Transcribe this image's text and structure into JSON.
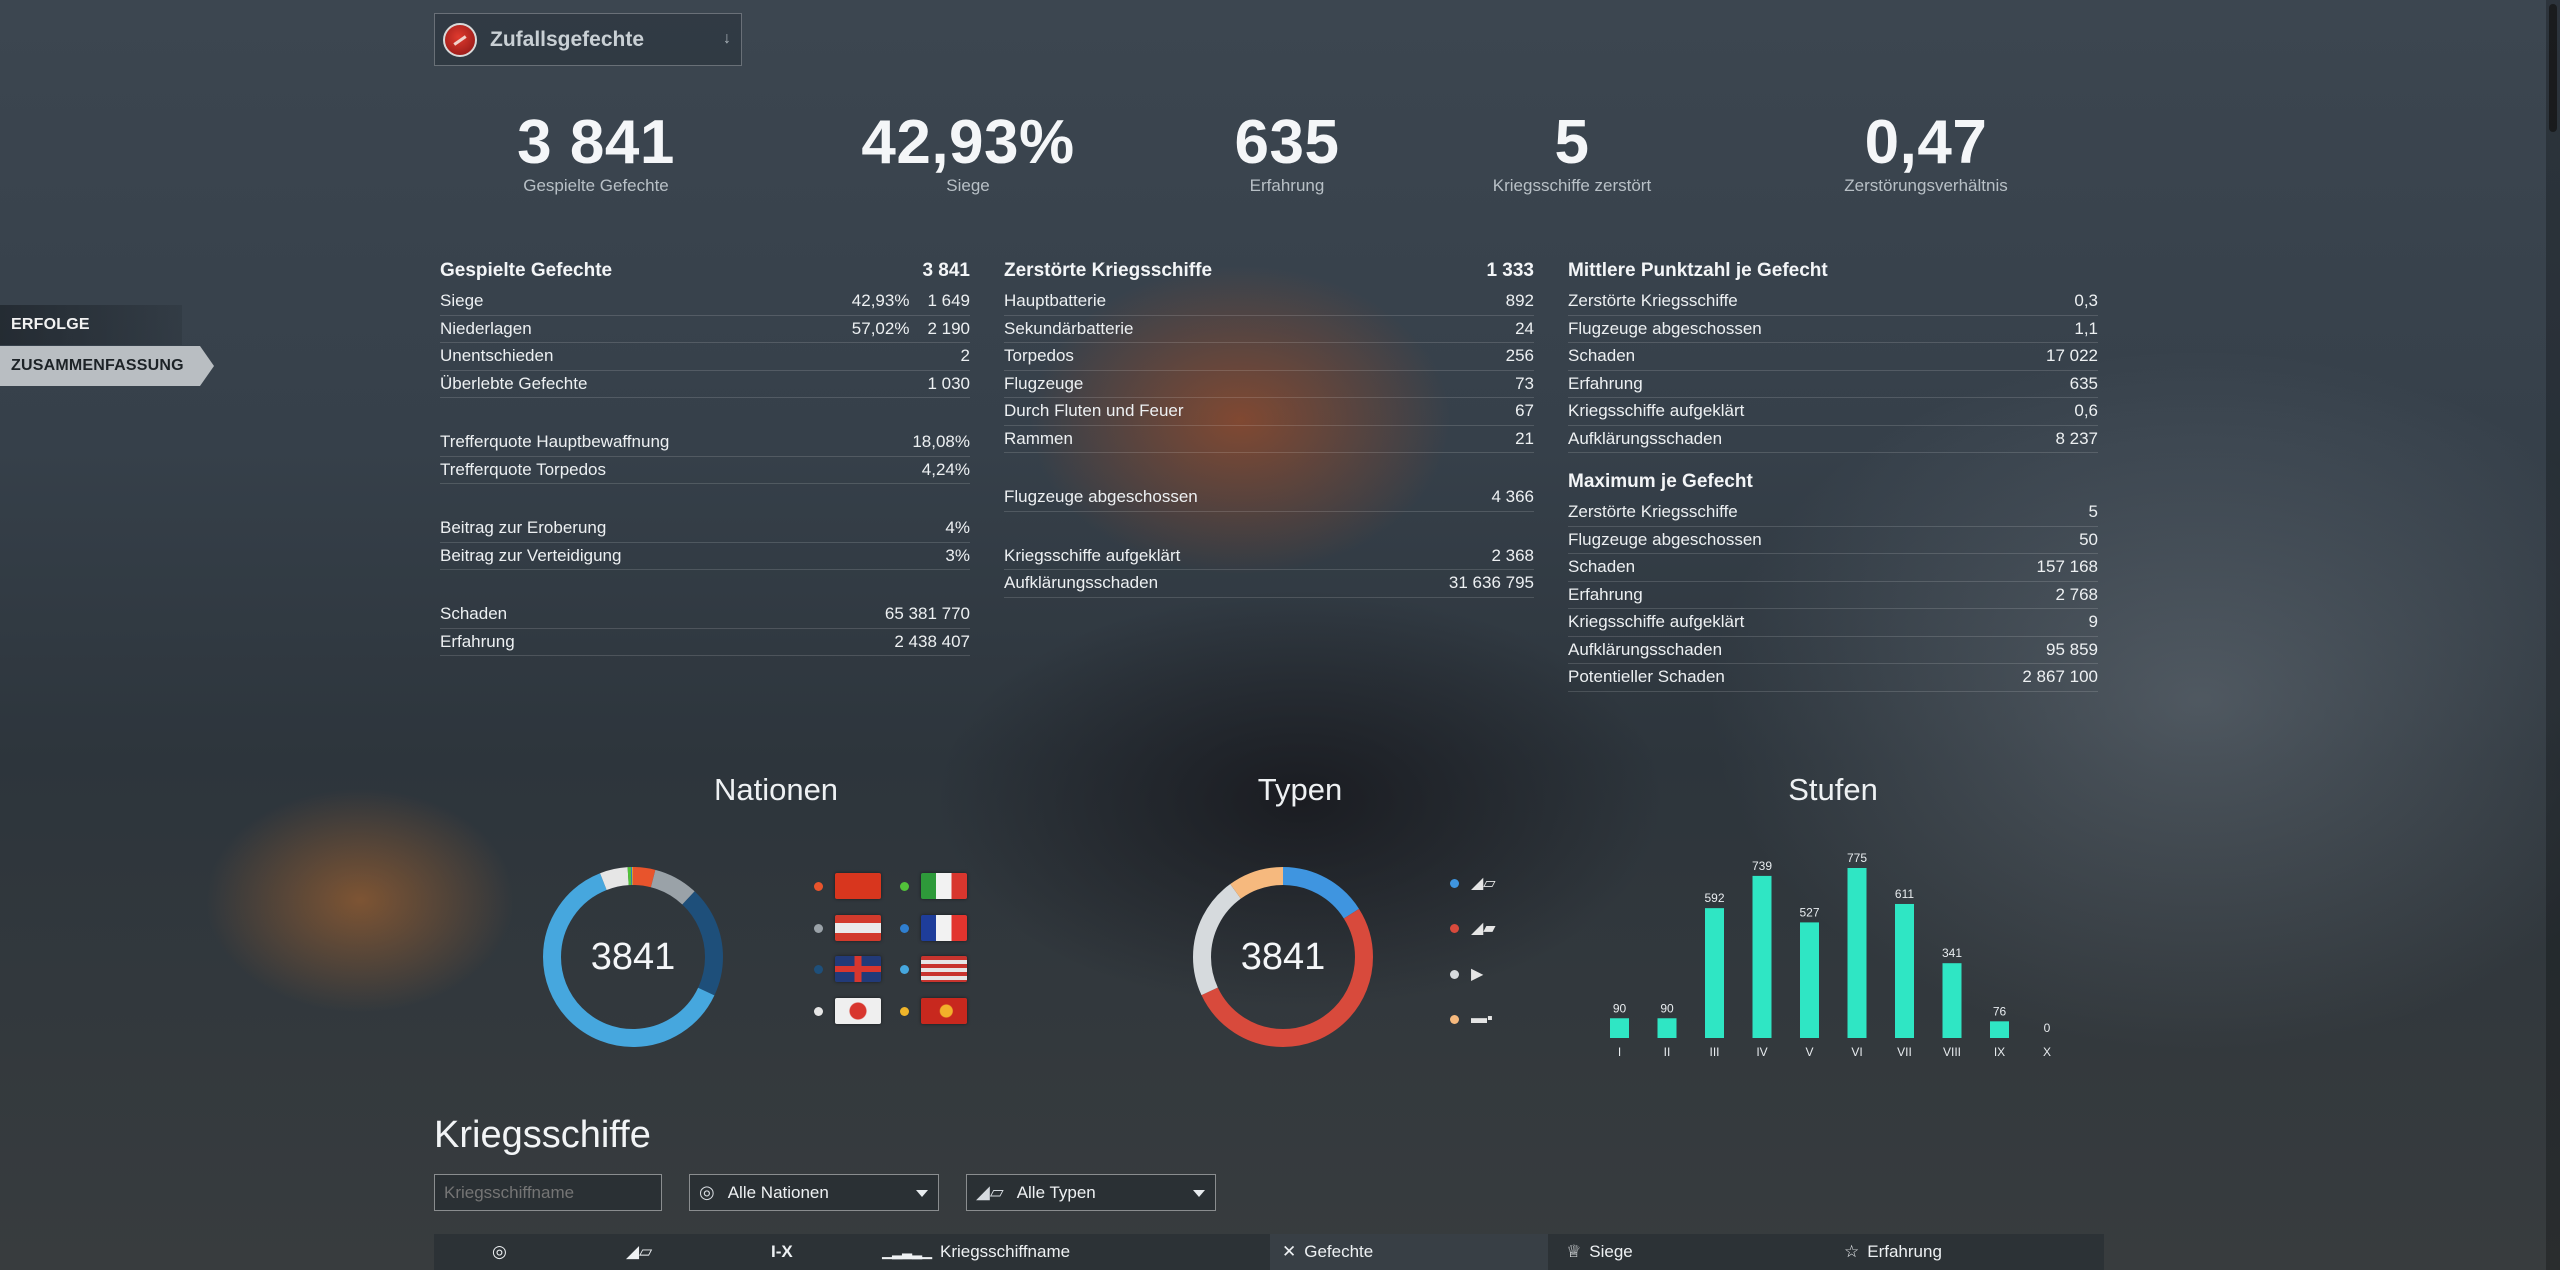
{
  "battle_type": {
    "label": "Zufallsgefechte",
    "icon": "random-battle-icon"
  },
  "side_nav": [
    {
      "label": "ERFOLGE",
      "active": false
    },
    {
      "label": "ZUSAMMENFASSUNG",
      "active": true
    }
  ],
  "top_stats": [
    {
      "value": "3 841",
      "label": "Gespielte Gefechte"
    },
    {
      "value": "42,93%",
      "label": "Siege"
    },
    {
      "value": "635",
      "label": "Erfahrung"
    },
    {
      "value": "5",
      "label": "Kriegsschiffe zerstört"
    },
    {
      "value": "0,47",
      "label": "Zerstörungsverhältnis"
    }
  ],
  "battles": {
    "title": "Gespielte Gefechte",
    "total": "3 841",
    "rows": [
      {
        "label": "Siege",
        "pct": "42,93%",
        "value": "1 649"
      },
      {
        "label": "Niederlagen",
        "pct": "57,02%",
        "value": "2 190"
      },
      {
        "label": "Unentschieden",
        "value": "2"
      },
      {
        "label": "Überlebte Gefechte",
        "value": "1 030"
      }
    ],
    "hit_rows": [
      {
        "label": "Trefferquote Hauptbewaffnung",
        "value": "18,08%"
      },
      {
        "label": "Trefferquote Torpedos",
        "value": "4,24%"
      }
    ],
    "cap_rows": [
      {
        "label": "Beitrag zur Eroberung",
        "value": "4%"
      },
      {
        "label": "Beitrag zur Verteidigung",
        "value": "3%"
      }
    ],
    "dmg_rows": [
      {
        "label": "Schaden",
        "value": "65 381 770"
      },
      {
        "label": "Erfahrung",
        "value": "2 438 407"
      }
    ]
  },
  "destroyed": {
    "title": "Zerstörte Kriegsschiffe",
    "total": "1 333",
    "rows": [
      {
        "label": "Hauptbatterie",
        "value": "892"
      },
      {
        "label": "Sekundärbatterie",
        "value": "24"
      },
      {
        "label": "Torpedos",
        "value": "256"
      },
      {
        "label": "Flugzeuge",
        "value": "73"
      },
      {
        "label": "Durch Fluten und Feuer",
        "value": "67"
      },
      {
        "label": "Rammen",
        "value": "21"
      }
    ],
    "planes_rows": [
      {
        "label": "Flugzeuge abgeschossen",
        "value": "4 366"
      }
    ],
    "spot_rows": [
      {
        "label": "Kriegsschiffe aufgeklärt",
        "value": "2 368"
      },
      {
        "label": "Aufklärungsschaden",
        "value": "31 636 795"
      }
    ]
  },
  "average": {
    "title": "Mittlere Punktzahl je Gefecht",
    "rows": [
      {
        "label": "Zerstörte Kriegsschiffe",
        "value": "0,3"
      },
      {
        "label": "Flugzeuge abgeschossen",
        "value": "1,1"
      },
      {
        "label": "Schaden",
        "value": "17 022"
      },
      {
        "label": "Erfahrung",
        "value": "635"
      },
      {
        "label": "Kriegsschiffe aufgeklärt",
        "value": "0,6"
      },
      {
        "label": "Aufklärungsschaden",
        "value": "8 237"
      }
    ]
  },
  "maximum": {
    "title": "Maximum je Gefecht",
    "rows": [
      {
        "label": "Zerstörte Kriegsschiffe",
        "value": "5"
      },
      {
        "label": "Flugzeuge abgeschossen",
        "value": "50"
      },
      {
        "label": "Schaden",
        "value": "157 168"
      },
      {
        "label": "Erfahrung",
        "value": "2 768"
      },
      {
        "label": "Kriegsschiffe aufgeklärt",
        "value": "9"
      },
      {
        "label": "Aufklärungsschaden",
        "value": "95 859"
      },
      {
        "label": "Potentieller Schaden",
        "value": "2 867 100"
      }
    ]
  },
  "charts": {
    "nations_title": "Nationen",
    "types_title": "Typen",
    "tiers_title": "Stufen",
    "center_total": "3841"
  },
  "chart_data": [
    {
      "type": "pie",
      "title": "Nationen",
      "center_label": "3841",
      "slices": [
        {
          "name": "ussr-flag",
          "fraction": 0.04,
          "color": "#e8542c"
        },
        {
          "name": "germany-flag",
          "fraction": 0.08,
          "color": "#9aa2a8"
        },
        {
          "name": "uk-flag",
          "fraction": 0.2,
          "color": "#1e4f7a"
        },
        {
          "name": "usa-flag",
          "fraction": 0.62,
          "color": "#46a7de"
        },
        {
          "name": "japan-flag",
          "fraction": 0.05,
          "color": "#e6e6e6"
        },
        {
          "name": "italy-flag",
          "fraction": 0.006,
          "color": "#52c23a"
        },
        {
          "name": "france-flag",
          "fraction": 0.002,
          "color": "#2f7fd0"
        },
        {
          "name": "china-flag",
          "fraction": 0.002,
          "color": "#f0b52a"
        }
      ]
    },
    {
      "type": "pie",
      "title": "Typen",
      "center_label": "3841",
      "slices": [
        {
          "name": "destroyer-icon",
          "fraction": 0.16,
          "color": "#3f95e0"
        },
        {
          "name": "cruiser-icon",
          "fraction": 0.52,
          "color": "#d84a3c"
        },
        {
          "name": "battleship-icon",
          "fraction": 0.22,
          "color": "#d6dadd"
        },
        {
          "name": "carrier-icon",
          "fraction": 0.1,
          "color": "#f6b97e"
        }
      ]
    },
    {
      "type": "bar",
      "title": "Stufen",
      "categories": [
        "I",
        "II",
        "III",
        "IV",
        "V",
        "VI",
        "VII",
        "VIII",
        "IX",
        "X"
      ],
      "values": [
        90,
        90,
        592,
        739,
        527,
        775,
        611,
        341,
        76,
        0
      ],
      "color": "#2fe6c4"
    }
  ],
  "nation_legend": [
    {
      "icon": "ussr-flag-icon",
      "color": "#e8542c"
    },
    {
      "icon": "italy-flag-icon",
      "color": "#52c23a"
    },
    {
      "icon": "germany-flag-icon",
      "color": "#9aa2a8"
    },
    {
      "icon": "france-flag-icon",
      "color": "#2f7fd0"
    },
    {
      "icon": "uk-flag-icon",
      "color": "#1e4f7a"
    },
    {
      "icon": "usa-flag-icon",
      "color": "#46a7de"
    },
    {
      "icon": "japan-flag-icon",
      "color": "#e6e6e6"
    },
    {
      "icon": "pan-asia-flag-icon",
      "color": "#f0b52a"
    }
  ],
  "type_legend": [
    {
      "icon": "destroyer-icon",
      "color": "#3f95e0",
      "glyph": "◢▱"
    },
    {
      "icon": "cruiser-icon",
      "color": "#d84a3c",
      "glyph": "◢▰"
    },
    {
      "icon": "battleship-icon",
      "color": "#d6dadd",
      "glyph": "▶"
    },
    {
      "icon": "carrier-icon",
      "color": "#f6b97e",
      "glyph": "▬▪"
    }
  ],
  "ships": {
    "title": "Kriegsschiffe",
    "search_placeholder": "Kriegsschiffname",
    "nation_filter": "Alle Nationen",
    "type_filter": "Alle Typen",
    "columns": {
      "tier": "I-X",
      "name": "Kriegsschiffname",
      "battles": "Gefechte",
      "wins": "Siege",
      "xp": "Erfahrung"
    }
  }
}
